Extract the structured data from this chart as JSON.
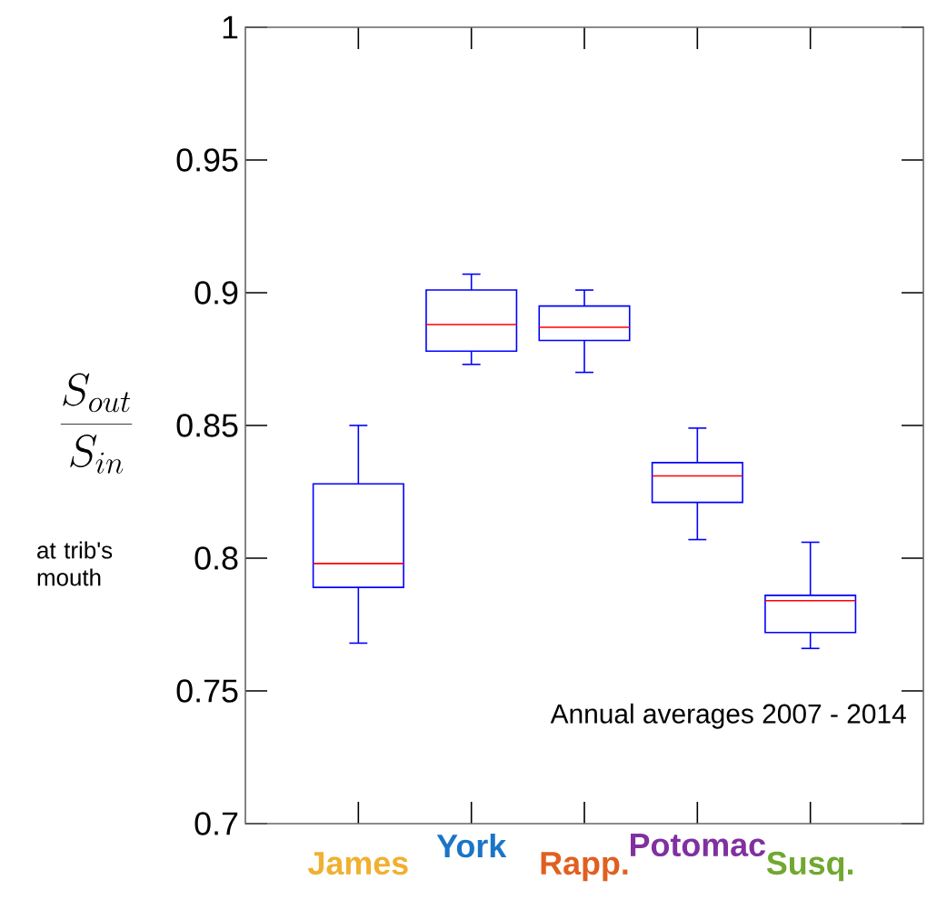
{
  "chart_data": {
    "type": "box",
    "ylabel": "\\frac{S_{out}}{S_{in}}",
    "annotations": [
      "at trib's mouth",
      "Annual averages 2007 - 2014"
    ],
    "categories": [
      "James",
      "York",
      "Rapp.",
      "Potomac",
      "Susq."
    ],
    "series": [
      {
        "color": "#0000ff",
        "boxes": [
          {
            "low": 0.768,
            "q1": 0.789,
            "median": 0.798,
            "q3": 0.828,
            "high": 0.85
          },
          {
            "low": 0.873,
            "q1": 0.878,
            "median": 0.888,
            "q3": 0.901,
            "high": 0.907
          },
          {
            "low": 0.87,
            "q1": 0.882,
            "median": 0.887,
            "q3": 0.895,
            "high": 0.901
          },
          {
            "low": 0.807,
            "q1": 0.821,
            "median": 0.831,
            "q3": 0.836,
            "high": 0.849
          },
          {
            "low": 0.766,
            "q1": 0.772,
            "median": 0.784,
            "q3": 0.786,
            "high": 0.806
          }
        ]
      }
    ],
    "ylim": [
      0.7,
      1
    ],
    "yticks": [
      0.7,
      0.75,
      0.8,
      0.85,
      0.9,
      0.95,
      1
    ],
    "grid": false
  }
}
